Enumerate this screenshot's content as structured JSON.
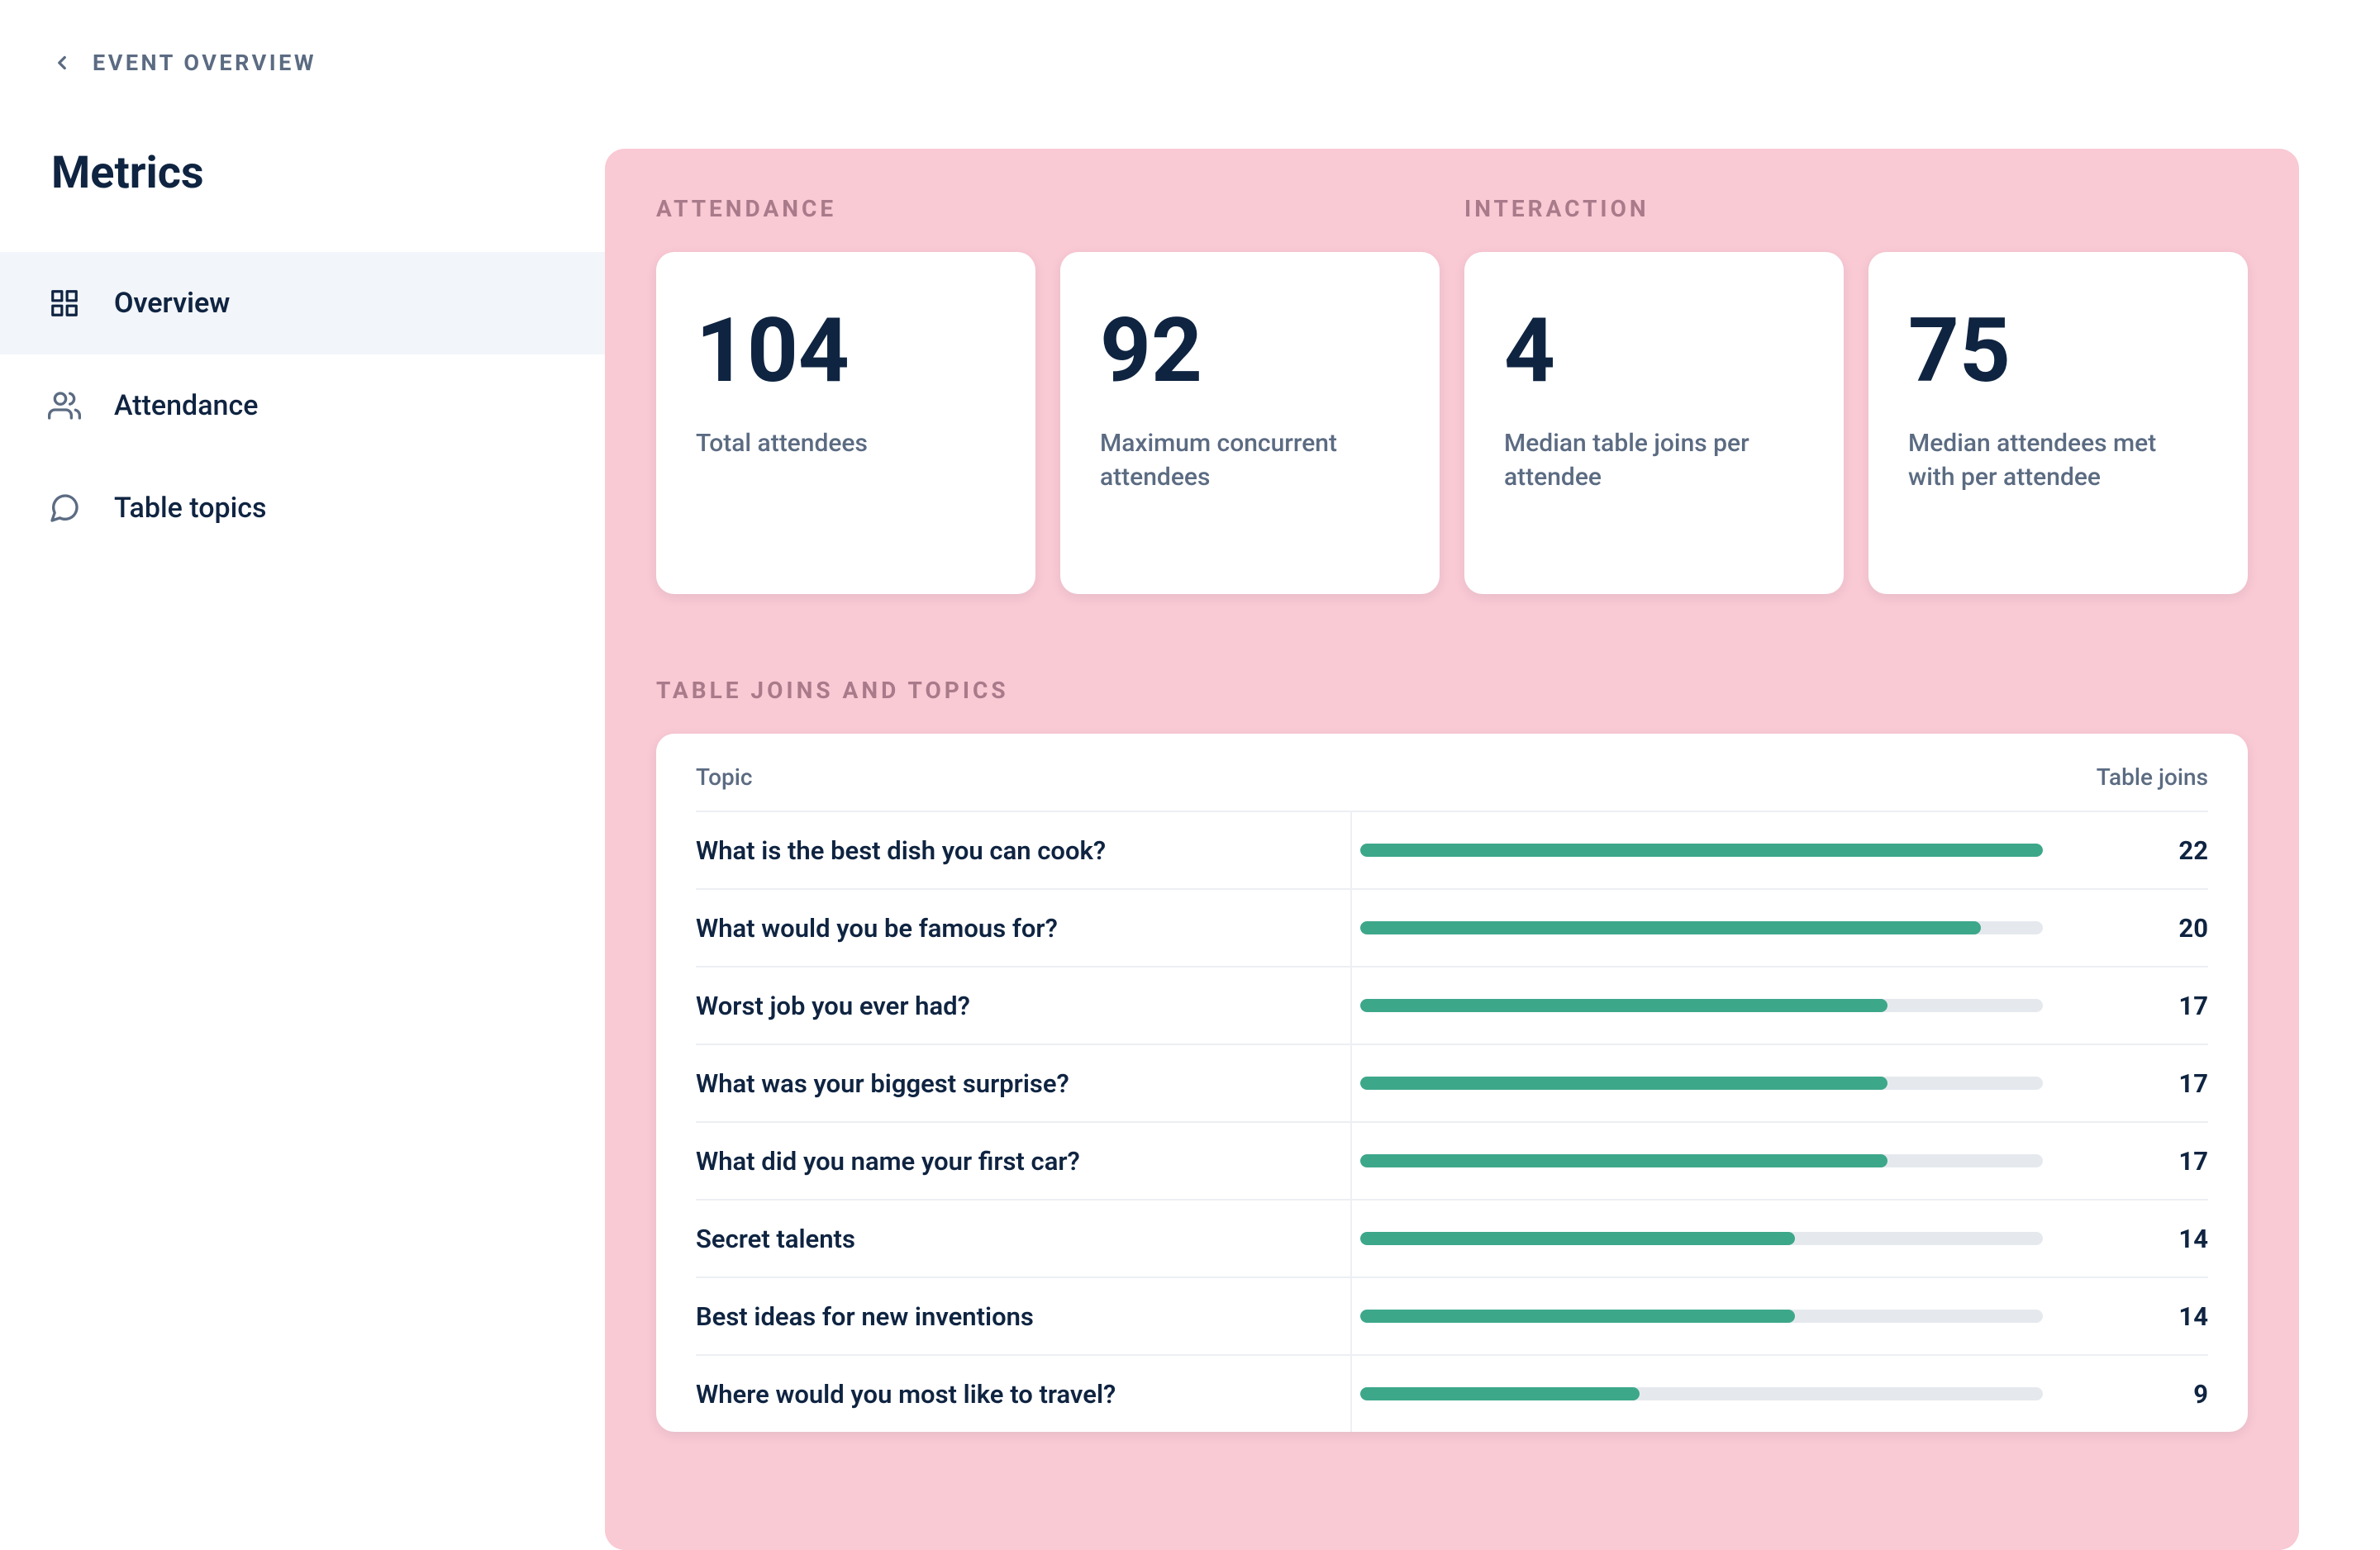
{
  "colors": {
    "panel_bg": "#f9c9d4",
    "card_bg": "#ffffff",
    "text_primary": "#0f2441",
    "text_secondary": "#5b6b82",
    "section_label": "#a87a8a",
    "nav_active_bg": "#f2f5f9",
    "divider": "#eceff3",
    "bar_fill": "#3da78a",
    "bar_track": "#e5e9ee"
  },
  "breadcrumb": {
    "label": "EVENT OVERVIEW"
  },
  "page": {
    "title": "Metrics"
  },
  "nav": {
    "items": [
      {
        "key": "overview",
        "label": "Overview",
        "icon": "grid",
        "active": true
      },
      {
        "key": "attendance",
        "label": "Attendance",
        "icon": "people",
        "active": false
      },
      {
        "key": "table-topics",
        "label": "Table topics",
        "icon": "chat",
        "active": false
      }
    ]
  },
  "sections": {
    "attendance_label": "ATTENDANCE",
    "interaction_label": "INTERACTION",
    "topics_label": "TABLE JOINS AND TOPICS"
  },
  "stats": {
    "attendance": [
      {
        "value": "104",
        "label": "Total attendees"
      },
      {
        "value": "92",
        "label": "Maximum concurrent attendees"
      }
    ],
    "interaction": [
      {
        "value": "4",
        "label": "Median table joins per attendee"
      },
      {
        "value": "75",
        "label": "Median attendees met with per attendee"
      }
    ]
  },
  "topics_table": {
    "header_topic": "Topic",
    "header_joins": "Table joins",
    "max_value": 22,
    "rows": [
      {
        "topic": "What is the best dish you can cook?",
        "joins": 22
      },
      {
        "topic": "What would you be famous for?",
        "joins": 20
      },
      {
        "topic": "Worst job you ever had?",
        "joins": 17
      },
      {
        "topic": "What was your biggest surprise?",
        "joins": 17
      },
      {
        "topic": "What did you name your first car?",
        "joins": 17
      },
      {
        "topic": "Secret talents",
        "joins": 14
      },
      {
        "topic": "Best ideas for new inventions",
        "joins": 14
      },
      {
        "topic": "Where would you most like to travel?",
        "joins": 9
      }
    ]
  }
}
